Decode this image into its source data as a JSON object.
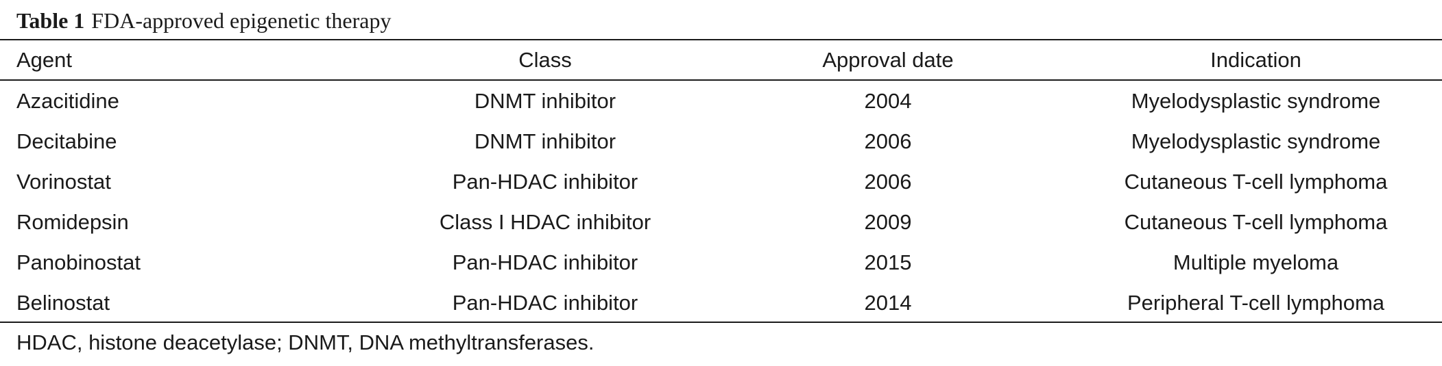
{
  "caption": {
    "label": "Table 1",
    "title": "FDA-approved epigenetic therapy"
  },
  "table": {
    "headers": [
      "Agent",
      "Class",
      "Approval date",
      "Indication"
    ],
    "rows": [
      [
        "Azacitidine",
        "DNMT inhibitor",
        "2004",
        "Myelodysplastic syndrome"
      ],
      [
        "Decitabine",
        "DNMT inhibitor",
        "2006",
        "Myelodysplastic syndrome"
      ],
      [
        "Vorinostat",
        "Pan-HDAC inhibitor",
        "2006",
        "Cutaneous T-cell lymphoma"
      ],
      [
        "Romidepsin",
        "Class I HDAC inhibitor",
        "2009",
        "Cutaneous T-cell lymphoma"
      ],
      [
        "Panobinostat",
        "Pan-HDAC inhibitor",
        "2015",
        "Multiple myeloma"
      ],
      [
        "Belinostat",
        "Pan-HDAC inhibitor",
        "2014",
        "Peripheral T-cell lymphoma"
      ]
    ]
  },
  "footnote": "HDAC, histone deacetylase; DNMT, DNA methyltransferases."
}
